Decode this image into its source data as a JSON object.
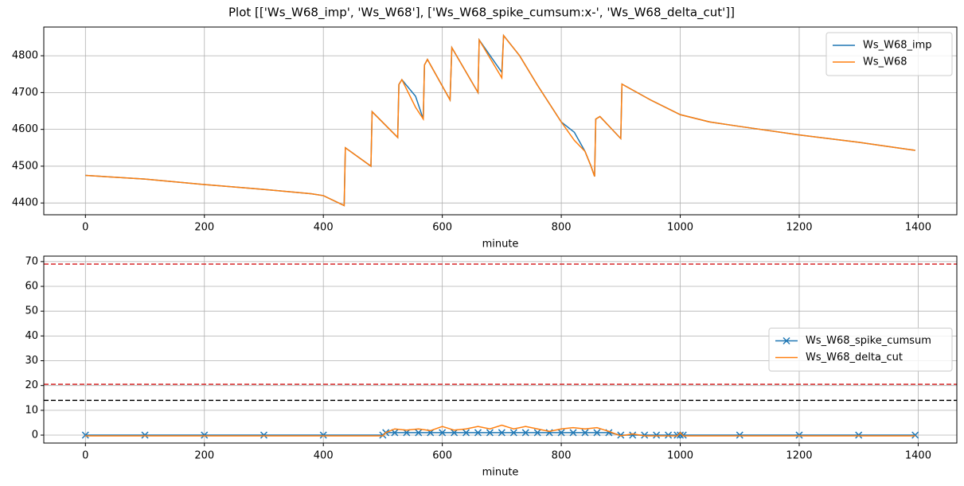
{
  "title": "Plot [['Ws_W68_imp', 'Ws_W68'], ['Ws_W68_spike_cumsum:x-', 'Ws_W68_delta_cut']]",
  "chart_data": [
    {
      "type": "line",
      "x_label": "minute",
      "grid": true,
      "legend": "upper right",
      "xlim": [
        -70,
        1465
      ],
      "ylim": [
        4368,
        4878
      ],
      "xticks": [
        0,
        200,
        400,
        600,
        800,
        1000,
        1200,
        1400
      ],
      "yticks": [
        4400,
        4500,
        4600,
        4700,
        4800
      ],
      "x": [
        0,
        100,
        200,
        300,
        380,
        400,
        435,
        437,
        480,
        482,
        525,
        527,
        532,
        555,
        568,
        570,
        575,
        613,
        616,
        660,
        662,
        700,
        703,
        730,
        760,
        800,
        822,
        840,
        850,
        856,
        858,
        865,
        900,
        902,
        950,
        1000,
        1050,
        1100,
        1200,
        1300,
        1395
      ],
      "series": [
        {
          "name": "Ws_W68_imp",
          "color": "#1f77b4",
          "values": [
            4475,
            4465,
            4450,
            4437,
            4425,
            4420,
            4393,
            4550,
            4500,
            4648,
            4578,
            4722,
            4735,
            4690,
            4628,
            4775,
            4790,
            4680,
            4822,
            4700,
            4843,
            4755,
            4855,
            4800,
            4720,
            4620,
            4592,
            4540,
            4500,
            4472,
            4628,
            4635,
            4575,
            4723,
            4680,
            4640,
            4620,
            4608,
            4585,
            4565,
            4543
          ]
        },
        {
          "name": "Ws_W68",
          "color": "#ff7f0e",
          "values": [
            4475,
            4465,
            4450,
            4437,
            4425,
            4420,
            4393,
            4550,
            4500,
            4648,
            4578,
            4722,
            4735,
            4660,
            4628,
            4775,
            4790,
            4680,
            4822,
            4700,
            4843,
            4740,
            4855,
            4800,
            4720,
            4620,
            4570,
            4540,
            4500,
            4472,
            4628,
            4635,
            4575,
            4723,
            4680,
            4640,
            4620,
            4608,
            4585,
            4565,
            4543
          ]
        }
      ]
    },
    {
      "type": "line",
      "x_label": "minute",
      "grid": true,
      "legend": "center right",
      "xlim": [
        -70,
        1465
      ],
      "ylim": [
        -3.2,
        72.2
      ],
      "xticks": [
        0,
        200,
        400,
        600,
        800,
        1000,
        1200,
        1400
      ],
      "yticks": [
        0,
        10,
        20,
        30,
        40,
        50,
        60,
        70
      ],
      "hlines": [
        {
          "value": 69,
          "color": "#d62728"
        },
        {
          "value": 20.5,
          "color": "#d62728"
        },
        {
          "value": 14,
          "color": "#000000"
        }
      ],
      "x": [
        0,
        100,
        200,
        300,
        400,
        500,
        505,
        520,
        540,
        560,
        580,
        600,
        620,
        640,
        660,
        680,
        700,
        720,
        740,
        760,
        780,
        800,
        820,
        840,
        860,
        880,
        900,
        920,
        940,
        960,
        980,
        995,
        1000,
        1005,
        1100,
        1200,
        1300,
        1395
      ],
      "series": [
        {
          "name": "Ws_W68_spike_cumsum",
          "color": "#1f77b4",
          "marker": "x",
          "values": [
            0,
            0,
            0,
            0,
            0,
            0,
            1,
            1,
            1,
            1,
            1,
            1,
            1,
            1,
            1,
            1,
            1,
            1,
            1,
            1,
            1,
            1,
            1,
            1,
            1,
            1,
            0,
            0,
            0,
            0,
            0,
            0,
            0,
            0,
            0,
            0,
            0,
            0
          ]
        },
        {
          "name": "Ws_W68_delta_cut",
          "color": "#ff7f0e",
          "values": [
            -0.3,
            -0.3,
            -0.3,
            -0.3,
            -0.3,
            -0.3,
            1,
            2.5,
            2,
            2.5,
            1.8,
            3.5,
            2,
            2.5,
            3.5,
            2.5,
            4,
            2.5,
            3.5,
            2.5,
            1.5,
            2.5,
            3,
            2.5,
            3,
            1.5,
            -0.3,
            0.5,
            -0.3,
            -0.3,
            -0.3,
            -0.3,
            1,
            -0.3,
            -0.3,
            -0.3,
            -0.3,
            -0.3
          ]
        }
      ]
    }
  ]
}
